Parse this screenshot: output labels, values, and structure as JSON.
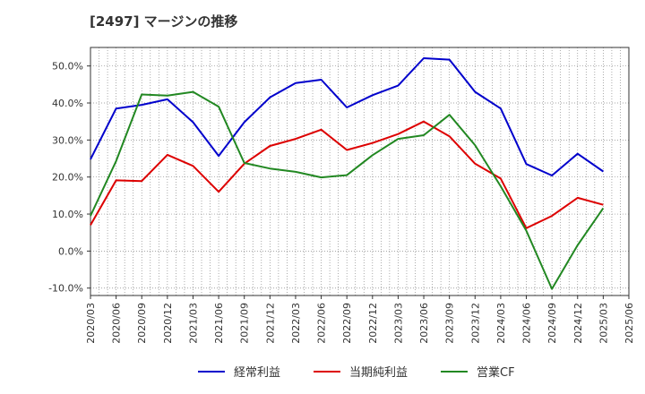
{
  "chart_data": {
    "type": "line",
    "title": "[2497]  マージンの推移",
    "xlabel": "",
    "ylabel": "",
    "ylim": [
      -12,
      55
    ],
    "yticks": [
      -10,
      0,
      10,
      20,
      30,
      40,
      50
    ],
    "ytick_labels": [
      "-10.0%",
      "0.0%",
      "10.0%",
      "20.0%",
      "30.0%",
      "40.0%",
      "50.0%"
    ],
    "grid": true,
    "legend_position": "bottom",
    "xtick_labels": [
      "2020/03",
      "2020/06",
      "2020/09",
      "2020/12",
      "2021/03",
      "2021/06",
      "2021/09",
      "2021/12",
      "2022/03",
      "2022/06",
      "2022/09",
      "2022/12",
      "2023/03",
      "2023/06",
      "2023/09",
      "2023/12",
      "2024/03",
      "2024/06",
      "2024/09",
      "2024/12",
      "2025/03",
      "2025/06"
    ],
    "categories": [
      "2020/03",
      "2020/06",
      "2020/09",
      "2020/12",
      "2021/03",
      "2021/06",
      "2021/09",
      "2021/12",
      "2022/03",
      "2022/06",
      "2022/09",
      "2022/12",
      "2023/03",
      "2023/06",
      "2023/09",
      "2023/12",
      "2024/03",
      "2024/06",
      "2024/09",
      "2024/12",
      "2025/03"
    ],
    "series": [
      {
        "name": "経常利益",
        "color": "#0000cc",
        "values": [
          24.8,
          38.5,
          39.5,
          41.0,
          34.8,
          25.7,
          34.8,
          41.5,
          45.4,
          46.3,
          38.8,
          42.1,
          44.7,
          52.1,
          51.7,
          43.0,
          38.5,
          23.5,
          20.4,
          26.3,
          21.5
        ]
      },
      {
        "name": "当期純利益",
        "color": "#dd0000",
        "values": [
          7.0,
          19.1,
          18.9,
          26.0,
          23.0,
          16.0,
          23.6,
          28.4,
          30.3,
          32.8,
          27.3,
          29.2,
          31.6,
          35.0,
          31.0,
          23.6,
          19.6,
          6.2,
          9.5,
          14.4,
          12.5
        ]
      },
      {
        "name": "営業CF",
        "color": "#228822",
        "values": [
          9.5,
          24.3,
          42.3,
          42.0,
          43.0,
          39.0,
          23.8,
          22.3,
          21.4,
          19.9,
          20.5,
          25.9,
          30.3,
          31.3,
          36.8,
          28.6,
          17.5,
          5.5,
          -10.2,
          1.6,
          11.6
        ]
      }
    ]
  }
}
